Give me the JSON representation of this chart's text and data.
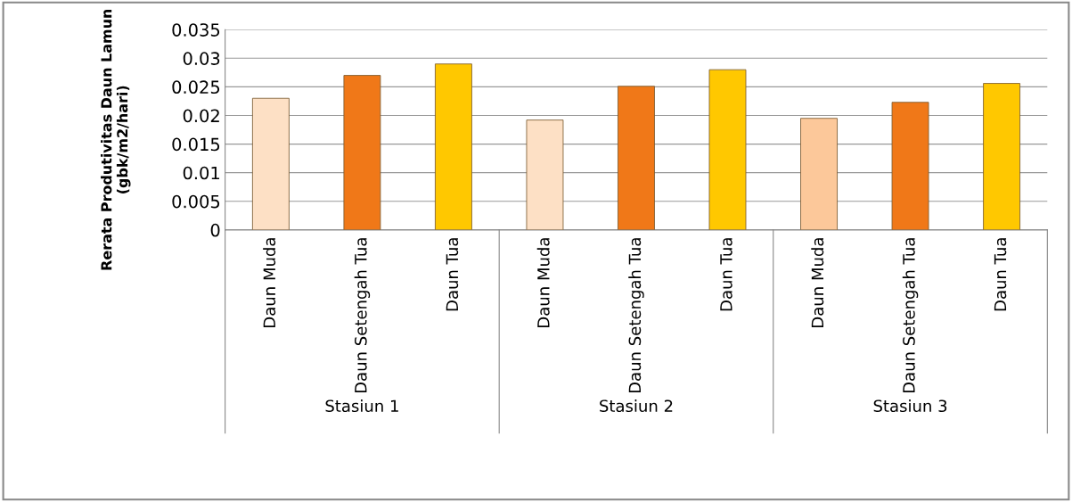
{
  "chart_data": {
    "type": "bar",
    "ylabel": "Rerata Produtivitas Daun Lamun\n(gbk/m2/hari)",
    "categories": [
      "Daun Muda",
      "Daun Setengah Tua",
      "Daun Tua",
      "Daun Muda",
      "Daun Setengah Tua",
      "Daun Tua",
      "Daun Muda",
      "Daun Setengah Tua",
      "Daun Tua"
    ],
    "values": [
      0.023,
      0.027,
      0.029,
      0.0192,
      0.0251,
      0.028,
      0.0195,
      0.0223,
      0.0256
    ],
    "colors": [
      "#fde0c5",
      "#f07818",
      "#ffc800",
      "#fde0c5",
      "#f07818",
      "#ffc800",
      "#fcc89a",
      "#f07818",
      "#ffc800"
    ],
    "annotations": [
      "Stasiun 1",
      "Stasiun 2",
      "Stasiun 3"
    ],
    "ylim": [
      0,
      0.035
    ],
    "yticks": [
      0,
      0.005,
      0.01,
      0.015,
      0.02,
      0.025,
      0.03,
      0.035
    ],
    "grid": "y",
    "legend": false
  }
}
